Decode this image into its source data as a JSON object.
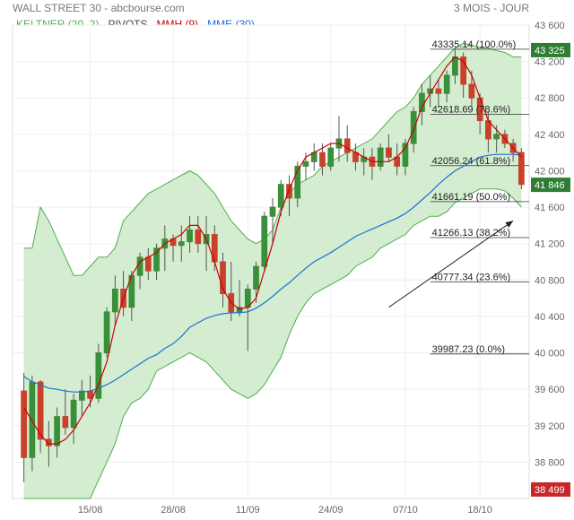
{
  "header": {
    "title": "WALL STREET 30 - abcbourse.com",
    "period": "3 MOIS - JOUR"
  },
  "legend": [
    {
      "label": "KELTNER (20, 2)",
      "color": "#4caf50"
    },
    {
      "label": "PIVOTS",
      "color": "#444444"
    },
    {
      "label": "MMH (9)",
      "color": "#cc0000"
    },
    {
      "label": "MME (30)",
      "color": "#1f6fd6"
    }
  ],
  "colors": {
    "up": "#3a8f3a",
    "down": "#c8412b",
    "band_fill": "#d4ecd0",
    "band_line": "#4caf50",
    "mmh": "#cc0000",
    "mme": "#1f6fd6",
    "last_badge": "#2e7d32",
    "high_badge": "#2e7d32",
    "low_badge": "#c62828"
  },
  "chart_data": {
    "type": "candlestick",
    "ylim": [
      38400,
      43600
    ],
    "y_ticks": [
      38800,
      39200,
      39600,
      40000,
      40400,
      40800,
      41200,
      41600,
      42000,
      42400,
      42800,
      43200,
      43600
    ],
    "y_tick_labels": [
      "38 800",
      "39 200",
      "39 600",
      "40 000",
      "40 400",
      "40 800",
      "41 200",
      "41 600",
      "42 000",
      "42 400",
      "42 800",
      "43 200",
      "43 600"
    ],
    "x_labels": [
      {
        "index": 8,
        "label": "15/08"
      },
      {
        "index": 18,
        "label": "28/08"
      },
      {
        "index": 27,
        "label": "11/09"
      },
      {
        "index": 37,
        "label": "24/09"
      },
      {
        "index": 46,
        "label": "07/10"
      },
      {
        "index": 55,
        "label": "18/10"
      }
    ],
    "candles": [
      [
        39580,
        39780,
        38580,
        38850
      ],
      [
        38850,
        39750,
        38700,
        39680
      ],
      [
        39680,
        39700,
        38900,
        39050
      ],
      [
        39050,
        39250,
        38750,
        38980
      ],
      [
        38980,
        39400,
        38850,
        39300
      ],
      [
        39300,
        39600,
        39100,
        39180
      ],
      [
        39180,
        39550,
        39000,
        39480
      ],
      [
        39480,
        39700,
        39300,
        39580
      ],
      [
        39580,
        39750,
        39400,
        39500
      ],
      [
        39500,
        40100,
        39450,
        40000
      ],
      [
        40000,
        40500,
        39950,
        40450
      ],
      [
        40450,
        40850,
        40300,
        40700
      ],
      [
        40700,
        40900,
        40400,
        40500
      ],
      [
        40500,
        40900,
        40350,
        40850
      ],
      [
        40850,
        41100,
        40700,
        41050
      ],
      [
        41050,
        41150,
        40800,
        40900
      ],
      [
        40900,
        41200,
        40800,
        41150
      ],
      [
        41150,
        41400,
        40900,
        41250
      ],
      [
        41250,
        41300,
        41000,
        41180
      ],
      [
        41180,
        41400,
        41000,
        41220
      ],
      [
        41220,
        41500,
        41100,
        41350
      ],
      [
        41350,
        41500,
        41100,
        41200
      ],
      [
        41200,
        41500,
        40900,
        41300
      ],
      [
        41300,
        41400,
        40900,
        41000
      ],
      [
        41000,
        41100,
        40500,
        40650
      ],
      [
        40650,
        41000,
        40350,
        40450
      ],
      [
        40450,
        40800,
        40400,
        40500
      ],
      [
        40500,
        40750,
        40020,
        40700
      ],
      [
        40700,
        41000,
        40550,
        40950
      ],
      [
        40950,
        41550,
        40900,
        41500
      ],
      [
        41500,
        41700,
        41200,
        41600
      ],
      [
        41600,
        41900,
        41500,
        41850
      ],
      [
        41850,
        41950,
        41500,
        41700
      ],
      [
        41700,
        42100,
        41600,
        42050
      ],
      [
        42050,
        42200,
        41900,
        42100
      ],
      [
        42100,
        42300,
        42000,
        42200
      ],
      [
        42200,
        42300,
        41950,
        42050
      ],
      [
        42050,
        42300,
        42000,
        42250
      ],
      [
        42250,
        42600,
        42100,
        42350
      ],
      [
        42350,
        42500,
        42100,
        42200
      ],
      [
        42200,
        42300,
        42000,
        42100
      ],
      [
        42100,
        42250,
        41950,
        42150
      ],
      [
        42150,
        42250,
        41900,
        42050
      ],
      [
        42050,
        42300,
        42000,
        42250
      ],
      [
        42250,
        42400,
        42100,
        42150
      ],
      [
        42150,
        42300,
        41950,
        42050
      ],
      [
        42050,
        42350,
        41950,
        42300
      ],
      [
        42300,
        42700,
        42200,
        42650
      ],
      [
        42650,
        42950,
        42500,
        42850
      ],
      [
        42850,
        43050,
        42700,
        42900
      ],
      [
        42900,
        43000,
        42700,
        42850
      ],
      [
        42850,
        43100,
        42750,
        43050
      ],
      [
        43050,
        43350,
        42950,
        43250
      ],
      [
        43250,
        43300,
        42800,
        42950
      ],
      [
        42950,
        43100,
        42700,
        42800
      ],
      [
        42800,
        42850,
        42400,
        42550
      ],
      [
        42550,
        42650,
        42200,
        42350
      ],
      [
        42350,
        42500,
        42200,
        42400
      ],
      [
        42400,
        42450,
        42250,
        42300
      ],
      [
        42300,
        42350,
        42100,
        42200
      ],
      [
        42200,
        42250,
        41800,
        41850
      ]
    ],
    "keltner_upper": [
      41150,
      41150,
      41600,
      41450,
      41250,
      41050,
      40850,
      40850,
      40950,
      41050,
      41050,
      41150,
      41450,
      41550,
      41650,
      41750,
      41800,
      41850,
      41900,
      41950,
      42000,
      41950,
      41850,
      41750,
      41600,
      41450,
      41350,
      41250,
      41200,
      41250,
      41350,
      41600,
      41750,
      41850,
      41900,
      41950,
      42050,
      42100,
      42150,
      42200,
      42250,
      42300,
      42350,
      42450,
      42550,
      42650,
      42700,
      42800,
      42950,
      43050,
      43150,
      43250,
      43350,
      43400,
      43380,
      43350,
      43350,
      43320,
      43300,
      43250,
      43250
    ],
    "keltner_lower": [
      38400,
      38400,
      38400,
      38400,
      38400,
      38400,
      38400,
      38400,
      38400,
      38600,
      38800,
      39000,
      39300,
      39450,
      39500,
      39600,
      39800,
      39850,
      39900,
      39950,
      40000,
      39950,
      39900,
      39800,
      39700,
      39600,
      39550,
      39500,
      39550,
      39650,
      39800,
      39950,
      40200,
      40400,
      40550,
      40650,
      40700,
      40750,
      40800,
      40850,
      40950,
      41000,
      41050,
      41150,
      41200,
      41250,
      41300,
      41400,
      41450,
      41500,
      41500,
      41550,
      41650,
      41700,
      41750,
      41800,
      41800,
      41800,
      41780,
      41700,
      41600
    ],
    "mme30": [
      39740,
      39680,
      39650,
      39610,
      39600,
      39580,
      39570,
      39570,
      39580,
      39610,
      39650,
      39700,
      39760,
      39820,
      39880,
      39940,
      39980,
      40050,
      40100,
      40180,
      40280,
      40330,
      40380,
      40410,
      40430,
      40440,
      40440,
      40450,
      40490,
      40550,
      40620,
      40700,
      40770,
      40850,
      40930,
      41000,
      41050,
      41100,
      41160,
      41220,
      41280,
      41320,
      41360,
      41400,
      41440,
      41480,
      41530,
      41600,
      41680,
      41760,
      41850,
      41930,
      42000,
      42050,
      42100,
      42150,
      42170,
      42180,
      42180,
      42180,
      42170
    ],
    "mmh9": [
      39400,
      39250,
      39100,
      39000,
      39000,
      39050,
      39150,
      39300,
      39450,
      39650,
      39900,
      40300,
      40600,
      40850,
      41000,
      41050,
      41100,
      41200,
      41250,
      41300,
      41400,
      41400,
      41250,
      41000,
      40700,
      40550,
      40480,
      40500,
      40600,
      40900,
      41200,
      41550,
      41800,
      42000,
      42150,
      42200,
      42250,
      42300,
      42300,
      42250,
      42200,
      42150,
      42100,
      42100,
      42100,
      42150,
      42250,
      42450,
      42700,
      42850,
      43000,
      43150,
      43250,
      43200,
      43050,
      42800,
      42550,
      42450,
      42350,
      42250,
      42150
    ],
    "pivots": [
      {
        "label": "43335.14  (100.0%)",
        "value": 43335.14
      },
      {
        "label": "42618.69  (78.6%)",
        "value": 42618.69
      },
      {
        "label": "42056.24  (61.8%)",
        "value": 42056.24
      },
      {
        "label": "41661.19  (50.0%)",
        "value": 41661.19
      },
      {
        "label": "41266.13  (38.2%)",
        "value": 41266.13
      },
      {
        "label": "40777.34  (23.6%)",
        "value": 40777.34
      },
      {
        "label": "39987.23  (0.0%)",
        "value": 39987.23
      }
    ],
    "annotation_arrow": {
      "from_index": 44,
      "from_value": 40500,
      "to_index": 59,
      "to_value": 41450
    },
    "price_badges": [
      {
        "label": "43 325",
        "value": 43325,
        "kind": "high"
      },
      {
        "label": "41 846",
        "value": 41846,
        "kind": "last"
      },
      {
        "label": "38 499",
        "value": 38499,
        "kind": "low"
      }
    ]
  }
}
